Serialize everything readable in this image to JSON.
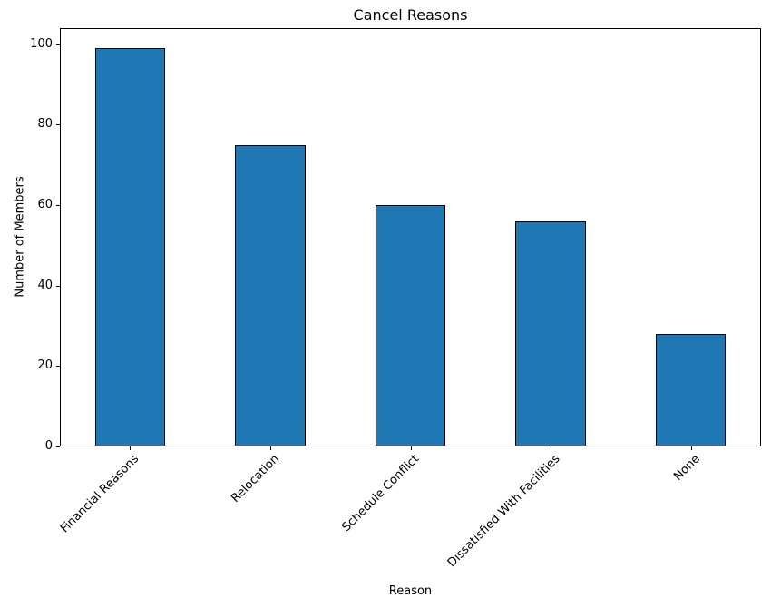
{
  "chart_data": {
    "type": "bar",
    "title": "Cancel Reasons",
    "xlabel": "Reason",
    "ylabel": "Number of Members",
    "categories": [
      "Financial Reasons",
      "Relocation",
      "Schedule Conflict",
      "Dissatisfied With Facilities",
      "None"
    ],
    "values": [
      99,
      75,
      60,
      56,
      28
    ],
    "ylim": [
      0,
      104
    ],
    "yticks": [
      0,
      20,
      40,
      60,
      80,
      100
    ],
    "x_tick_rotation_deg": 45,
    "grid": false,
    "legend": "none",
    "colors": {
      "bar_fill": "#1f77b4",
      "bar_edge": "#000000",
      "text": "#000000",
      "background": "#ffffff"
    }
  }
}
